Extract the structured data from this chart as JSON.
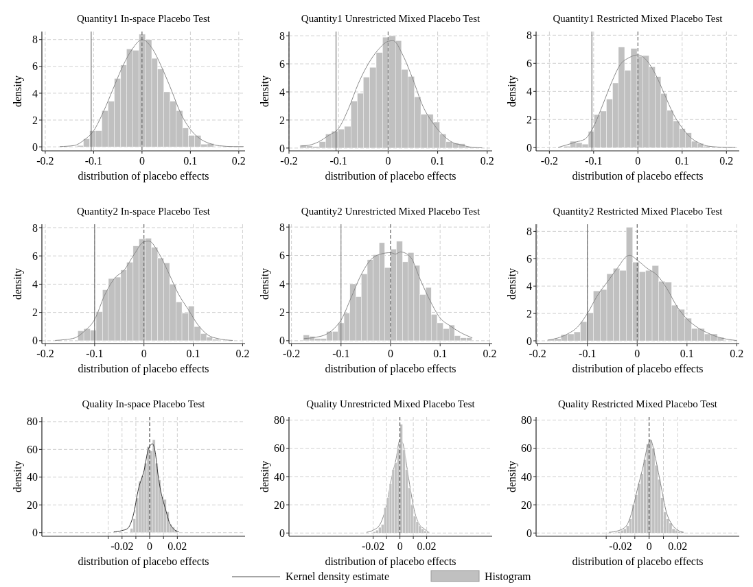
{
  "chart_data": [
    {
      "type": "histogram",
      "title": "Quantity1 In-space Placebo Test",
      "xlabel": "distribution of placebo effects",
      "ylabel": "density",
      "xlim": [
        -0.207,
        0.213
      ],
      "ylim": [
        -0.3,
        8.6
      ],
      "xticks": [
        -0.2,
        -0.1,
        0,
        0.1,
        0.2
      ],
      "yticks": [
        0,
        2,
        4,
        6,
        8
      ],
      "grid": true,
      "ref_lines": [
        {
          "axis": "x",
          "value": -0.105,
          "color": "#555555",
          "line_style": "solid"
        },
        {
          "axis": "x",
          "value": 0,
          "color": "#555555",
          "line_style": "dashed"
        }
      ],
      "series": [
        {
          "type": "histogram",
          "color": "#c0c0c0",
          "bins": [
            -0.134,
            -0.121,
            -0.108,
            -0.096,
            -0.083,
            -0.07,
            -0.057,
            -0.044,
            -0.032,
            -0.019,
            -0.006,
            0.007,
            0.02,
            0.032,
            0.045,
            0.058,
            0.071,
            0.084,
            0.096,
            0.109,
            0.122,
            0.135,
            0.148
          ],
          "values": [
            0.1,
            0.6,
            1.2,
            1.2,
            2.7,
            3.4,
            5.1,
            6.1,
            7.3,
            7.2,
            8.4,
            8.0,
            6.6,
            5.8,
            4.1,
            3.4,
            2.7,
            1.4,
            0.85,
            0.85,
            0.2,
            0.25
          ]
        },
        {
          "type": "line",
          "color": "#888888",
          "x": [
            -0.17,
            -0.14,
            -0.12,
            -0.1,
            -0.08,
            -0.06,
            -0.04,
            -0.02,
            0,
            0.02,
            0.04,
            0.06,
            0.08,
            0.1,
            0.12,
            0.14,
            0.16,
            0.19,
            0.21
          ],
          "values": [
            0.02,
            0.1,
            0.5,
            1.2,
            2.6,
            4.3,
            6.0,
            7.3,
            8.0,
            7.4,
            6.0,
            4.3,
            2.5,
            1.3,
            0.6,
            0.25,
            0.08,
            0.02,
            0.02
          ]
        }
      ]
    },
    {
      "type": "histogram",
      "title": "Quantity1 Unrestricted Mixed Placebo Test",
      "xlabel": "distribution of placebo effects",
      "ylabel": "density",
      "xlim": [
        -0.2,
        0.21
      ],
      "ylim": [
        -0.2,
        8.3
      ],
      "xticks": [
        -0.2,
        -0.1,
        0,
        0.1,
        0.2
      ],
      "yticks": [
        0,
        2,
        4,
        6,
        8
      ],
      "grid": true,
      "ref_lines": [
        {
          "axis": "x",
          "value": -0.105,
          "color": "#555555",
          "line_style": "solid"
        },
        {
          "axis": "x",
          "value": 0,
          "color": "#555555",
          "line_style": "dashed"
        }
      ],
      "series": [
        {
          "type": "histogram",
          "color": "#c0c0c0",
          "bins": [
            -0.178,
            -0.165,
            -0.152,
            -0.139,
            -0.126,
            -0.114,
            -0.101,
            -0.088,
            -0.075,
            -0.062,
            -0.05,
            -0.037,
            -0.024,
            -0.011,
            0.002,
            0.015,
            0.027,
            0.04,
            0.053,
            0.066,
            0.079,
            0.091,
            0.104,
            0.117,
            0.13,
            0.143,
            0.155,
            0.168,
            0.181
          ],
          "values": [
            0.2,
            0.15,
            0.1,
            0.45,
            1.0,
            1.2,
            1.35,
            1.55,
            3.35,
            3.9,
            5.05,
            5.75,
            6.8,
            7.9,
            8.0,
            7.65,
            5.6,
            5.1,
            3.65,
            2.4,
            2.4,
            1.85,
            1.0,
            0.45,
            0.35,
            0.3,
            0.1,
            0.05
          ]
        },
        {
          "type": "line",
          "color": "#888888",
          "x": [
            -0.175,
            -0.16,
            -0.14,
            -0.12,
            -0.1,
            -0.08,
            -0.06,
            -0.04,
            -0.02,
            0,
            0.01,
            0.03,
            0.05,
            0.07,
            0.09,
            0.11,
            0.13,
            0.15,
            0.17,
            0.19
          ],
          "values": [
            0.15,
            0.2,
            0.45,
            0.9,
            1.4,
            2.8,
            4.6,
            6.0,
            7.0,
            7.6,
            7.65,
            6.6,
            4.9,
            3.0,
            1.8,
            0.95,
            0.4,
            0.2,
            0.05,
            0.02
          ]
        }
      ]
    },
    {
      "type": "histogram",
      "title": "Quantity1 Restricted Mixed Placebo Test",
      "xlabel": "distribution of placebo effects",
      "ylabel": "density",
      "xlim": [
        -0.23,
        0.229
      ],
      "ylim": [
        -0.23,
        8.26
      ],
      "xticks": [
        -0.2,
        -0.1,
        0,
        0.1,
        0.2
      ],
      "yticks": [
        0,
        2,
        4,
        6,
        8
      ],
      "grid": true,
      "ref_lines": [
        {
          "axis": "x",
          "value": -0.104,
          "color": "#555555",
          "line_style": "solid"
        },
        {
          "axis": "x",
          "value": 0,
          "color": "#555555",
          "line_style": "dashed"
        }
      ],
      "series": [
        {
          "type": "histogram",
          "color": "#c0c0c0",
          "bins": [
            -0.167,
            -0.153,
            -0.14,
            -0.126,
            -0.112,
            -0.099,
            -0.085,
            -0.071,
            -0.057,
            -0.044,
            -0.03,
            -0.016,
            -0.002,
            0.011,
            0.025,
            0.039,
            0.052,
            0.066,
            0.08,
            0.094,
            0.107,
            0.121,
            0.135,
            0.148,
            0.162
          ],
          "values": [
            0.1,
            0.45,
            0.35,
            0.25,
            1.15,
            2.35,
            2.6,
            3.45,
            4.6,
            7.15,
            5.5,
            7.05,
            6.5,
            6.55,
            5.75,
            5.05,
            3.85,
            2.65,
            1.9,
            1.35,
            1.05,
            0.45,
            0.3,
            0.1
          ]
        },
        {
          "type": "line",
          "color": "#888888",
          "x": [
            -0.18,
            -0.16,
            -0.14,
            -0.12,
            -0.1,
            -0.08,
            -0.06,
            -0.04,
            -0.02,
            0,
            0.02,
            0.04,
            0.06,
            0.08,
            0.1,
            0.12,
            0.14,
            0.16,
            0.2,
            0.22
          ],
          "values": [
            0.02,
            0.2,
            0.4,
            0.6,
            1.5,
            3.0,
            4.6,
            5.9,
            6.4,
            6.6,
            6.2,
            5.2,
            3.8,
            2.4,
            1.4,
            0.7,
            0.3,
            0.1,
            0.02,
            0.01
          ]
        }
      ]
    },
    {
      "type": "histogram",
      "title": "Quantity2 In-space Placebo Test",
      "xlabel": "distribution of placebo effects",
      "ylabel": "density",
      "xlim": [
        -0.207,
        0.205
      ],
      "ylim": [
        -0.2,
        8.24
      ],
      "xticks": [
        -0.2,
        -0.1,
        0,
        0.1,
        0.2
      ],
      "yticks": [
        0,
        2,
        4,
        6,
        8
      ],
      "grid": true,
      "ref_lines": [
        {
          "axis": "x",
          "value": -0.1,
          "color": "#555555",
          "line_style": "solid"
        },
        {
          "axis": "x",
          "value": 0,
          "color": "#555555",
          "line_style": "dashed"
        }
      ],
      "series": [
        {
          "type": "histogram",
          "color": "#c0c0c0",
          "bins": [
            -0.134,
            -0.122,
            -0.109,
            -0.097,
            -0.084,
            -0.072,
            -0.059,
            -0.047,
            -0.035,
            -0.022,
            -0.01,
            0.003,
            0.015,
            0.028,
            0.04,
            0.052,
            0.065,
            0.077,
            0.09,
            0.102,
            0.115,
            0.127,
            0.139,
            0.152
          ],
          "values": [
            0.7,
            0.85,
            0.75,
            2.05,
            3.6,
            4.4,
            4.5,
            5.0,
            5.55,
            6.7,
            7.2,
            7.25,
            6.6,
            5.85,
            5.5,
            4.0,
            2.75,
            1.95,
            2.45,
            1.0,
            0.5,
            0.25,
            0.1
          ]
        },
        {
          "type": "line",
          "color": "#888888",
          "x": [
            -0.18,
            -0.16,
            -0.14,
            -0.12,
            -0.1,
            -0.08,
            -0.06,
            -0.04,
            -0.02,
            0,
            0.01,
            0.03,
            0.05,
            0.07,
            0.09,
            0.11,
            0.13,
            0.15,
            0.18
          ],
          "values": [
            0.02,
            0.08,
            0.2,
            0.7,
            1.5,
            3.2,
            4.4,
            5.0,
            6.1,
            7.0,
            7.05,
            6.2,
            4.8,
            3.3,
            2.2,
            1.1,
            0.4,
            0.15,
            0.02
          ]
        }
      ]
    },
    {
      "type": "histogram",
      "title": "Quantity2 Unrestricted Mixed Placebo Test",
      "xlabel": "distribution of placebo effects",
      "ylabel": "density",
      "xlim": [
        -0.205,
        0.205
      ],
      "ylim": [
        -0.2,
        8.2
      ],
      "xticks": [
        -0.2,
        -0.1,
        0,
        0.1,
        0.2
      ],
      "yticks": [
        0,
        2,
        4,
        6,
        8
      ],
      "grid": true,
      "ref_lines": [
        {
          "axis": "x",
          "value": -0.1,
          "color": "#777777",
          "line_style": "solid"
        },
        {
          "axis": "x",
          "value": 0,
          "color": "#555555",
          "line_style": "dashed"
        }
      ],
      "series": [
        {
          "type": "histogram",
          "color": "#c0c0c0",
          "bins": [
            -0.176,
            -0.164,
            -0.153,
            -0.141,
            -0.129,
            -0.117,
            -0.106,
            -0.094,
            -0.082,
            -0.07,
            -0.059,
            -0.047,
            -0.035,
            -0.023,
            -0.012,
            0.0,
            0.012,
            0.024,
            0.035,
            0.047,
            0.059,
            0.071,
            0.082,
            0.094,
            0.106,
            0.118,
            0.129,
            0.141,
            0.153,
            0.164
          ],
          "values": [
            0.4,
            0.3,
            0.15,
            0.15,
            0.65,
            0.65,
            1.25,
            1.95,
            4.0,
            3.1,
            4.7,
            5.7,
            6.05,
            6.9,
            5.15,
            6.45,
            7.0,
            5.55,
            6.2,
            5.3,
            3.25,
            3.75,
            1.85,
            1.25,
            0.85,
            1.1,
            0.35,
            0.2,
            0.2
          ]
        },
        {
          "type": "line",
          "color": "#888888",
          "x": [
            -0.175,
            -0.15,
            -0.13,
            -0.11,
            -0.1,
            -0.08,
            -0.06,
            -0.04,
            -0.02,
            0,
            0.01,
            0.02,
            0.04,
            0.06,
            0.08,
            0.1,
            0.12,
            0.14,
            0.165
          ],
          "values": [
            0.15,
            0.25,
            0.45,
            1.0,
            1.45,
            3.0,
            4.6,
            5.7,
            6.1,
            6.2,
            6.1,
            6.25,
            5.9,
            4.3,
            2.8,
            1.6,
            1.05,
            0.6,
            0.2
          ]
        }
      ]
    },
    {
      "type": "histogram",
      "title": "Quantity2 Restricted Mixed Placebo Test",
      "xlabel": "distribution of placebo effects",
      "ylabel": "density",
      "xlim": [
        -0.203,
        0.205
      ],
      "ylim": [
        -0.2,
        8.52
      ],
      "xticks": [
        -0.2,
        -0.1,
        0,
        0.1,
        0.2
      ],
      "yticks": [
        0,
        2,
        4,
        6,
        8
      ],
      "grid": true,
      "ref_lines": [
        {
          "axis": "x",
          "value": -0.1,
          "color": "#555555",
          "line_style": "solid"
        },
        {
          "axis": "x",
          "value": 0,
          "color": "#555555",
          "line_style": "dashed"
        }
      ],
      "series": [
        {
          "type": "histogram",
          "color": "#c0c0c0",
          "bins": [
            -0.179,
            -0.166,
            -0.153,
            -0.14,
            -0.127,
            -0.114,
            -0.101,
            -0.088,
            -0.074,
            -0.061,
            -0.048,
            -0.035,
            -0.022,
            -0.009,
            0.004,
            0.017,
            0.03,
            0.043,
            0.056,
            0.069,
            0.082,
            0.095,
            0.109,
            0.122,
            0.135,
            0.148,
            0.161,
            0.174
          ],
          "values": [
            0.1,
            0.15,
            0.45,
            0.5,
            0.65,
            1.4,
            2.05,
            3.65,
            3.75,
            4.9,
            5.3,
            5.15,
            8.3,
            5.75,
            5.05,
            5.15,
            5.5,
            4.35,
            4.3,
            2.6,
            2.3,
            1.65,
            0.9,
            0.9,
            0.5,
            0.5,
            0.25
          ]
        },
        {
          "type": "line",
          "color": "#888888",
          "x": [
            -0.18,
            -0.16,
            -0.14,
            -0.12,
            -0.1,
            -0.08,
            -0.06,
            -0.04,
            -0.02,
            -0.015,
            0,
            0.02,
            0.04,
            0.06,
            0.08,
            0.1,
            0.12,
            0.14,
            0.16,
            0.2
          ],
          "values": [
            0.05,
            0.2,
            0.5,
            1.0,
            2.0,
            3.3,
            4.3,
            5.3,
            6.2,
            6.25,
            5.9,
            5.3,
            4.8,
            3.8,
            2.5,
            1.6,
            1.0,
            0.6,
            0.3,
            0.02
          ]
        }
      ]
    },
    {
      "type": "histogram",
      "title": "Quality In-space Placebo Test",
      "xlabel": "distribution of placebo effects",
      "ylabel": "density",
      "xlim": [
        -0.078,
        0.069
      ],
      "ylim": [
        -2.6,
        83.4
      ],
      "xticks": [
        {
          "value": -0.03,
          "label": null
        },
        -0.02,
        {
          "value": -0.01,
          "label": null
        },
        0,
        {
          "value": 0.01,
          "label": null
        },
        0.02
      ],
      "yticks": [
        0,
        20,
        40,
        60,
        80
      ],
      "grid": true,
      "ref_lines": [
        {
          "axis": "x",
          "value": 0,
          "color": "#333333",
          "line_style": "dashed"
        }
      ],
      "series": [
        {
          "type": "histogram",
          "color": "#c0c0c0",
          "bins": [
            -0.014,
            -0.012,
            -0.01,
            -0.008,
            -0.006,
            -0.004,
            -0.002,
            0,
            0.002,
            0.004,
            0.006,
            0.008,
            0.01,
            0.012,
            0.014,
            0.016,
            0.018,
            0.02
          ],
          "values": [
            3,
            10,
            25,
            37,
            41,
            50,
            62,
            59,
            67,
            50,
            38,
            26,
            24,
            15,
            6,
            4,
            2
          ]
        },
        {
          "type": "line",
          "color": "#333333",
          "x": [
            -0.026,
            -0.02,
            -0.016,
            -0.012,
            -0.008,
            -0.004,
            -0.001,
            0.002,
            0.004,
            0.006,
            0.008,
            0.01,
            0.012,
            0.014,
            0.017,
            0.021
          ],
          "values": [
            0.5,
            1.5,
            3,
            12,
            32,
            45,
            60,
            64,
            58,
            42,
            30,
            22,
            15,
            8,
            3,
            0.5
          ]
        }
      ]
    },
    {
      "type": "histogram",
      "title": "Quality Unrestricted Mixed Placebo Test",
      "xlabel": "distribution of placebo effects",
      "ylabel": "density",
      "xlim": [
        -0.083,
        0.069
      ],
      "ylim": [
        -2.3,
        82.3
      ],
      "xticks": [
        -0.02,
        {
          "value": -0.01,
          "label": null
        },
        0,
        {
          "value": 0.01,
          "label": null
        },
        0.02
      ],
      "yticks": [
        0,
        20,
        40,
        60,
        80
      ],
      "grid": true,
      "legend": "bottom",
      "ref_lines": [
        {
          "axis": "x",
          "value": 0,
          "color": "#333333",
          "line_style": "dashed"
        }
      ],
      "series": [
        {
          "type": "line",
          "name": "Kernel density estimate",
          "color": "#888888",
          "x": [
            -0.025,
            -0.02,
            -0.015,
            -0.01,
            -0.006,
            -0.003,
            0,
            0.002,
            0.005,
            0.008,
            0.011,
            0.014,
            0.018,
            0.022
          ],
          "values": [
            0.5,
            2,
            6,
            20,
            40,
            52,
            66,
            64,
            48,
            30,
            15,
            7,
            3,
            0.5
          ]
        },
        {
          "type": "histogram",
          "name": "Histogram",
          "color": "#c0c0c0",
          "bins": [
            -0.02,
            -0.018,
            -0.016,
            -0.014,
            -0.012,
            -0.01,
            -0.008,
            -0.006,
            -0.004,
            -0.002,
            0,
            0.002,
            0.004,
            0.006,
            0.008,
            0.01,
            0.012,
            0.014,
            0.016,
            0.018,
            0.02,
            0.022
          ],
          "values": [
            1,
            2,
            4,
            6,
            18,
            25,
            35,
            45,
            50,
            60,
            77,
            59,
            45,
            32,
            20,
            12,
            8,
            5,
            3,
            1.5,
            1
          ]
        }
      ]
    },
    {
      "type": "histogram",
      "title": "Quality Restricted Mixed Placebo Test",
      "xlabel": "distribution of placebo effects",
      "ylabel": "density",
      "xlim": [
        -0.079,
        0.063
      ],
      "ylim": [
        -2.3,
        82.3
      ],
      "xticks": [
        {
          "value": -0.03,
          "label": null
        },
        -0.02,
        {
          "value": -0.01,
          "label": null
        },
        0,
        {
          "value": 0.01,
          "label": null
        },
        0.02
      ],
      "yticks": [
        0,
        20,
        40,
        60,
        80
      ],
      "grid": true,
      "ref_lines": [
        {
          "axis": "x",
          "value": 0,
          "color": "#333333",
          "line_style": "dashed"
        }
      ],
      "series": [
        {
          "type": "histogram",
          "color": "#c0c0c0",
          "bins": [
            -0.024,
            -0.022,
            -0.02,
            -0.018,
            -0.016,
            -0.014,
            -0.012,
            -0.01,
            -0.008,
            -0.006,
            -0.004,
            -0.002,
            0,
            0.002,
            0.004,
            0.006,
            0.008,
            0.01,
            0.012,
            0.014,
            0.016,
            0.018,
            0.02,
            0.022,
            0.024
          ],
          "values": [
            0.5,
            1,
            2,
            3,
            5,
            10,
            20,
            27,
            35,
            42,
            52,
            63,
            66,
            60,
            48,
            38,
            25,
            15,
            10,
            7,
            3,
            2,
            1,
            1
          ]
        },
        {
          "type": "line",
          "color": "#888888",
          "x": [
            -0.028,
            -0.022,
            -0.016,
            -0.012,
            -0.008,
            -0.004,
            -0.001,
            0.001,
            0.004,
            0.008,
            0.012,
            0.016,
            0.02,
            0.024
          ],
          "values": [
            0.5,
            1.5,
            5,
            15,
            32,
            48,
            62,
            66,
            55,
            35,
            15,
            6,
            2,
            0.5
          ]
        }
      ]
    }
  ]
}
